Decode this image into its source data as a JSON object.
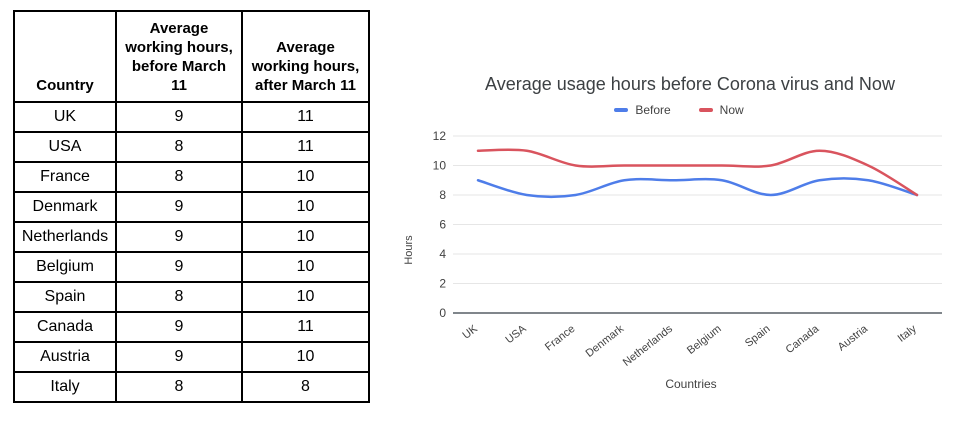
{
  "table": {
    "headers": {
      "country": "Country",
      "before": "Average working hours, before March 11",
      "after": "Average working hours, after March 11"
    },
    "rows": [
      {
        "country": "UK",
        "before": "9",
        "after": "11"
      },
      {
        "country": "USA",
        "before": "8",
        "after": "11"
      },
      {
        "country": "France",
        "before": "8",
        "after": "10"
      },
      {
        "country": "Denmark",
        "before": "9",
        "after": "10"
      },
      {
        "country": "Netherlands",
        "before": "9",
        "after": "10"
      },
      {
        "country": "Belgium",
        "before": "9",
        "after": "10"
      },
      {
        "country": "Spain",
        "before": "8",
        "after": "10"
      },
      {
        "country": "Canada",
        "before": "9",
        "after": "11"
      },
      {
        "country": "Austria",
        "before": "9",
        "after": "10"
      },
      {
        "country": "Italy",
        "before": "8",
        "after": "8"
      }
    ]
  },
  "chart_data": {
    "type": "line",
    "title": "Average usage hours before Corona virus and Now",
    "xlabel": "Countries",
    "ylabel": "Hours",
    "categories": [
      "UK",
      "USA",
      "France",
      "Denmark",
      "Netherlands",
      "Belgium",
      "Spain",
      "Canada",
      "Austria",
      "Italy"
    ],
    "series": [
      {
        "name": "Before",
        "color": "#4e7de9",
        "values": [
          9,
          8,
          8,
          9,
          9,
          9,
          8,
          9,
          9,
          8
        ]
      },
      {
        "name": "Now",
        "color": "#d9545e",
        "values": [
          11,
          11,
          10,
          10,
          10,
          10,
          10,
          11,
          10,
          8
        ]
      }
    ],
    "yticks": [
      0,
      2,
      4,
      6,
      8,
      10,
      12
    ],
    "ylim": [
      0,
      12
    ],
    "grid": true,
    "legend_position": "top",
    "line_smoothing": true,
    "colors": {
      "gridline": "#e6e6e6",
      "baseline": "#80868b",
      "tick_text": "#424242",
      "title_text": "#3c4043"
    }
  }
}
